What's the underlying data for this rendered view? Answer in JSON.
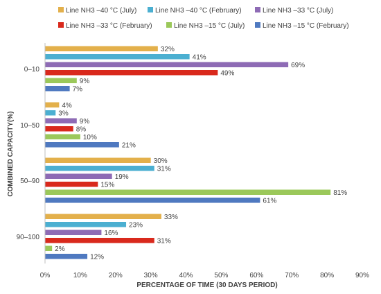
{
  "chart_data": {
    "type": "bar",
    "orientation": "horizontal",
    "categories": [
      "0–10",
      "10–50",
      "50–90",
      "90–100"
    ],
    "series": [
      {
        "name": "Line NH3 –40 °C (July)",
        "color": "#E3B04B",
        "values": [
          32,
          4,
          30,
          33
        ]
      },
      {
        "name": "Line NH3 –40 °C (February)",
        "color": "#4BAFD1",
        "values": [
          41,
          3,
          31,
          23
        ]
      },
      {
        "name": "Line NH3 –33 °C (July)",
        "color": "#8E6BB5",
        "values": [
          69,
          9,
          19,
          16
        ]
      },
      {
        "name": "Line NH3 –33 °C (February)",
        "color": "#D9291C",
        "values": [
          49,
          8,
          15,
          31
        ]
      },
      {
        "name": "Line NH3 –15 °C (July)",
        "color": "#9BC85A",
        "values": [
          9,
          10,
          81,
          2
        ]
      },
      {
        "name": "Line NH3 –15 °C (February)",
        "color": "#4F79C0",
        "values": [
          7,
          21,
          61,
          12
        ]
      }
    ],
    "value_suffix": "%",
    "xlabel": "PERCENTAGE OF TIME (30 DAYS PERIOD)",
    "ylabel": "COMBINED CAPACITY(%)",
    "xlim": [
      0,
      90
    ],
    "xticks": [
      0,
      10,
      20,
      30,
      40,
      50,
      60,
      70,
      80,
      90
    ],
    "tick_suffix": "%",
    "grid": false,
    "legend_position": "top"
  }
}
